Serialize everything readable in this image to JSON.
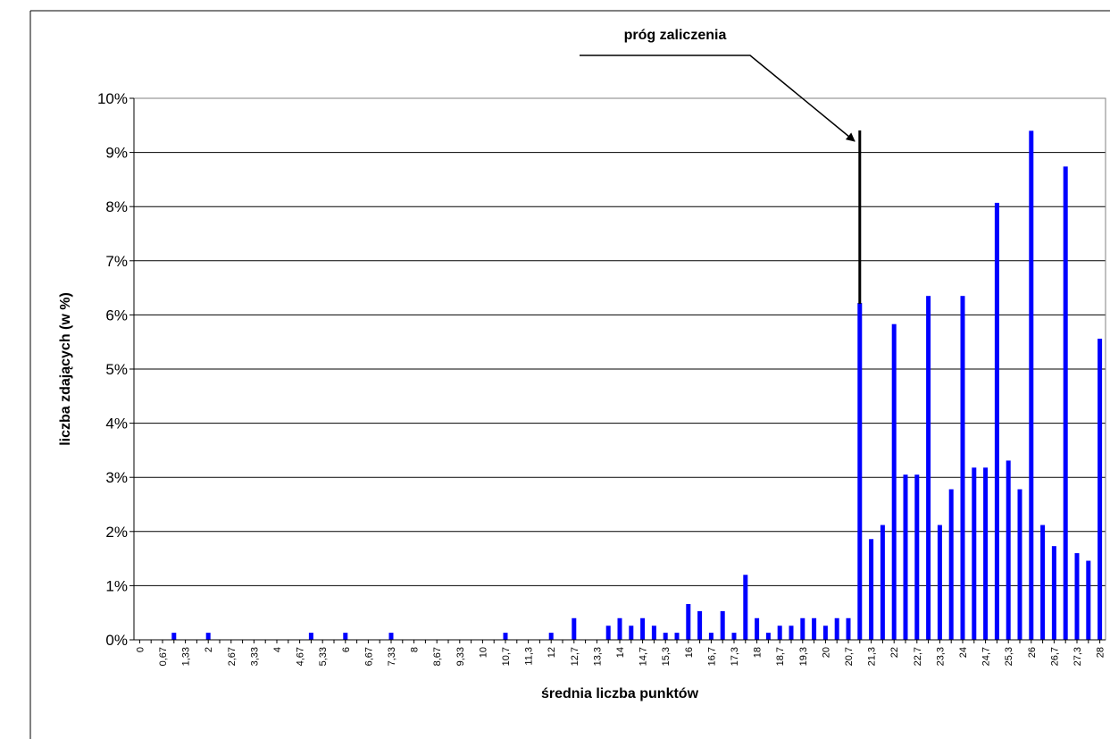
{
  "chart_data": {
    "type": "bar",
    "title": "",
    "xlabel": "średnia liczba punktów",
    "ylabel": "liczba zdających (w %)",
    "ylim": [
      0,
      10
    ],
    "y_ticks": [
      "0%",
      "1%",
      "2%",
      "3%",
      "4%",
      "5%",
      "6%",
      "7%",
      "8%",
      "9%",
      "10%"
    ],
    "grid": "horizontal",
    "legend": "none",
    "bar_color": "#0000ff",
    "categories": [
      "0",
      "0,33",
      "0,67",
      "1",
      "1,33",
      "1,67",
      "2",
      "2,33",
      "2,67",
      "3",
      "3,33",
      "3,67",
      "4",
      "4,33",
      "4,67",
      "5",
      "5,33",
      "5,67",
      "6",
      "6,33",
      "6,67",
      "7",
      "7,33",
      "7,67",
      "8",
      "8,33",
      "8,67",
      "9",
      "9,33",
      "9,67",
      "10",
      "10,3",
      "10,7",
      "11",
      "11,3",
      "11,7",
      "12",
      "12,3",
      "12,7",
      "13",
      "13,3",
      "13,7",
      "14",
      "14,3",
      "14,7",
      "15",
      "15,3",
      "15,7",
      "16",
      "16,3",
      "16,7",
      "17",
      "17,3",
      "17,7",
      "18",
      "18,3",
      "18,7",
      "19",
      "19,3",
      "19,7",
      "20",
      "20,3",
      "20,7",
      "21",
      "21,3",
      "21,7",
      "22",
      "22,3",
      "22,7",
      "23",
      "23,3",
      "23,7",
      "24",
      "24,3",
      "24,7",
      "25",
      "25,3",
      "25,7",
      "26",
      "26,3",
      "26,7",
      "27",
      "27,3",
      "27,7",
      "28"
    ],
    "tick_labels_shown_every": 2,
    "values": [
      0,
      0,
      0,
      0.13,
      0,
      0,
      0.13,
      0,
      0,
      0,
      0,
      0,
      0,
      0,
      0,
      0.13,
      0,
      0,
      0.13,
      0,
      0,
      0,
      0.13,
      0,
      0,
      0,
      0,
      0,
      0,
      0,
      0,
      0,
      0.13,
      0,
      0,
      0,
      0.13,
      0,
      0.4,
      0,
      0,
      0.26,
      0.4,
      0.26,
      0.4,
      0.26,
      0.13,
      0.13,
      0.66,
      0.53,
      0.13,
      0.53,
      0.13,
      1.2,
      0.4,
      0.13,
      0.26,
      0.26,
      0.4,
      0.4,
      0.26,
      0.4,
      0.4,
      6.22,
      1.86,
      2.12,
      5.83,
      3.05,
      3.05,
      6.35,
      2.12,
      2.78,
      6.35,
      3.18,
      3.18,
      8.07,
      3.31,
      2.78,
      9.4,
      2.12,
      1.73,
      8.74,
      1.6,
      1.46,
      5.56
    ],
    "annotation": {
      "text": "próg zaliczenia",
      "target_category": "21"
    }
  }
}
